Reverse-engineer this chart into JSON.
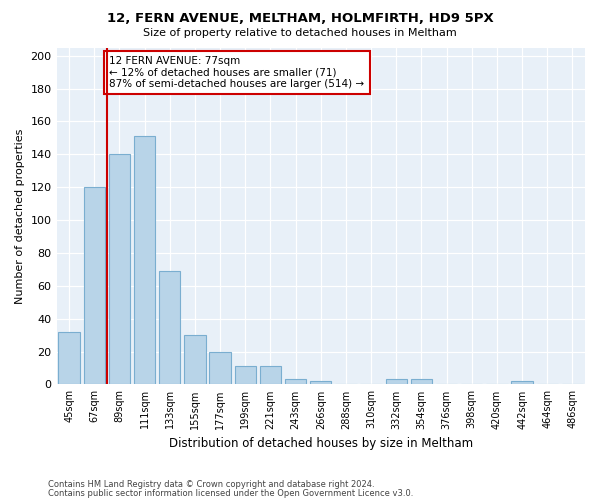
{
  "title1": "12, FERN AVENUE, MELTHAM, HOLMFIRTH, HD9 5PX",
  "title2": "Size of property relative to detached houses in Meltham",
  "xlabel": "Distribution of detached houses by size in Meltham",
  "ylabel": "Number of detached properties",
  "bar_color": "#b8d4e8",
  "bar_edge_color": "#7aaed0",
  "background_color": "#e8f0f8",
  "categories": [
    "45sqm",
    "67sqm",
    "89sqm",
    "111sqm",
    "133sqm",
    "155sqm",
    "177sqm",
    "199sqm",
    "221sqm",
    "243sqm",
    "266sqm",
    "288sqm",
    "310sqm",
    "332sqm",
    "354sqm",
    "376sqm",
    "398sqm",
    "420sqm",
    "442sqm",
    "464sqm",
    "486sqm"
  ],
  "values": [
    32,
    120,
    140,
    151,
    69,
    30,
    20,
    11,
    11,
    3,
    2,
    0,
    0,
    3,
    3,
    0,
    0,
    0,
    2,
    0,
    0
  ],
  "vline_x": 1.5,
  "vline_color": "#cc0000",
  "annotation_text": "12 FERN AVENUE: 77sqm\n← 12% of detached houses are smaller (71)\n87% of semi-detached houses are larger (514) →",
  "annotation_box_color": "#ffffff",
  "annotation_box_edge_color": "#cc0000",
  "ylim": [
    0,
    205
  ],
  "yticks": [
    0,
    20,
    40,
    60,
    80,
    100,
    120,
    140,
    160,
    180,
    200
  ],
  "footer1": "Contains HM Land Registry data © Crown copyright and database right 2024.",
  "footer2": "Contains public sector information licensed under the Open Government Licence v3.0."
}
